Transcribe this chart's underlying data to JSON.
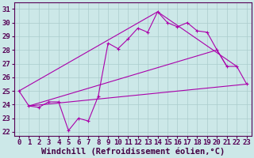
{
  "xlabel": "Windchill (Refroidissement éolien,°C)",
  "ylabel": "",
  "background_color": "#cce8e8",
  "grid_color": "#aacccc",
  "line_color": "#aa00aa",
  "xlim": [
    -0.5,
    23.5
  ],
  "ylim": [
    21.7,
    31.5
  ],
  "xticks": [
    0,
    1,
    2,
    3,
    4,
    5,
    6,
    7,
    8,
    9,
    10,
    11,
    12,
    13,
    14,
    15,
    16,
    17,
    18,
    19,
    20,
    21,
    22,
    23
  ],
  "yticks": [
    22,
    23,
    24,
    25,
    26,
    27,
    28,
    29,
    30,
    31
  ],
  "line1_x": [
    0,
    1,
    2,
    3,
    4,
    5,
    6,
    7,
    8,
    9,
    10,
    11,
    12,
    13,
    14,
    15,
    16,
    17,
    18,
    19,
    20,
    21,
    22,
    23
  ],
  "line1_y": [
    25.0,
    23.9,
    23.8,
    24.2,
    24.2,
    22.1,
    23.0,
    22.8,
    24.6,
    28.5,
    28.1,
    28.8,
    29.6,
    29.3,
    30.8,
    30.0,
    29.7,
    30.0,
    29.4,
    29.3,
    28.0,
    26.8,
    26.8,
    25.5
  ],
  "line2_x": [
    1,
    23
  ],
  "line2_y": [
    23.9,
    25.5
  ],
  "line3_x": [
    1,
    20,
    21
  ],
  "line3_y": [
    23.9,
    28.0,
    26.8
  ],
  "line4_x": [
    0,
    14,
    22
  ],
  "line4_y": [
    25.0,
    30.8,
    26.8
  ],
  "tick_fontsize": 6.5,
  "xlabel_fontsize": 7.5,
  "marker": "+"
}
